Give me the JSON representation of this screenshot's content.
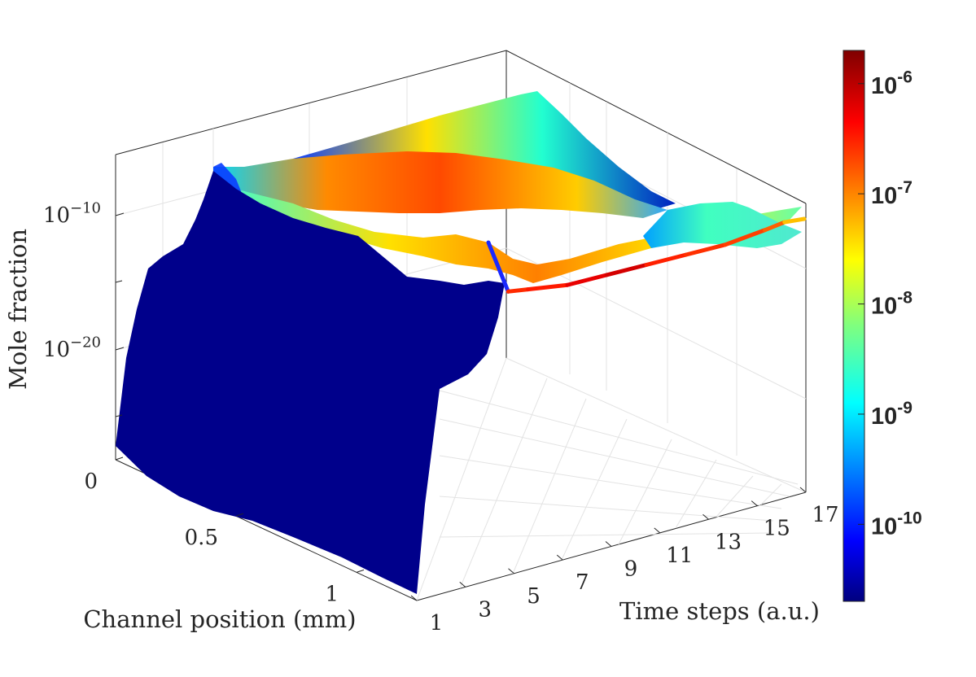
{
  "chart_data": {
    "type": "surface3d",
    "title": "",
    "xlabel": "Channel position (mm)",
    "ylabel": "Time steps (a.u.)",
    "zlabel": "Mole fraction",
    "x_ticks": [
      "0",
      "0.5",
      "1"
    ],
    "y_ticks": [
      "1",
      "3",
      "5",
      "7",
      "9",
      "11",
      "13",
      "15",
      "17"
    ],
    "z_ticks": [
      {
        "base": "10",
        "exp": "−10"
      },
      {
        "base": "10",
        "exp": "−20"
      }
    ],
    "x_range": [
      0,
      1.25
    ],
    "y_range": [
      1,
      17
    ],
    "z_scale": "log",
    "grid": true,
    "colormap": "jet",
    "colorbar": {
      "placement": "right",
      "scale": "log",
      "range": [
        2e-11,
        2e-06
      ],
      "ticks": [
        {
          "base": "10",
          "exp": "-6"
        },
        {
          "base": "10",
          "exp": "-7"
        },
        {
          "base": "10",
          "exp": "-8"
        },
        {
          "base": "10",
          "exp": "-9"
        },
        {
          "base": "10",
          "exp": "-10"
        }
      ]
    },
    "line_series": {
      "y": [
        1,
        2,
        3,
        5,
        7,
        9,
        11,
        13,
        15,
        16,
        17
      ],
      "z_log10": [
        -19,
        -14,
        -13.5,
        -12.5,
        -12,
        -11.5,
        -11,
        -10.5,
        -10.4,
        -10.4,
        -10
      ]
    }
  }
}
